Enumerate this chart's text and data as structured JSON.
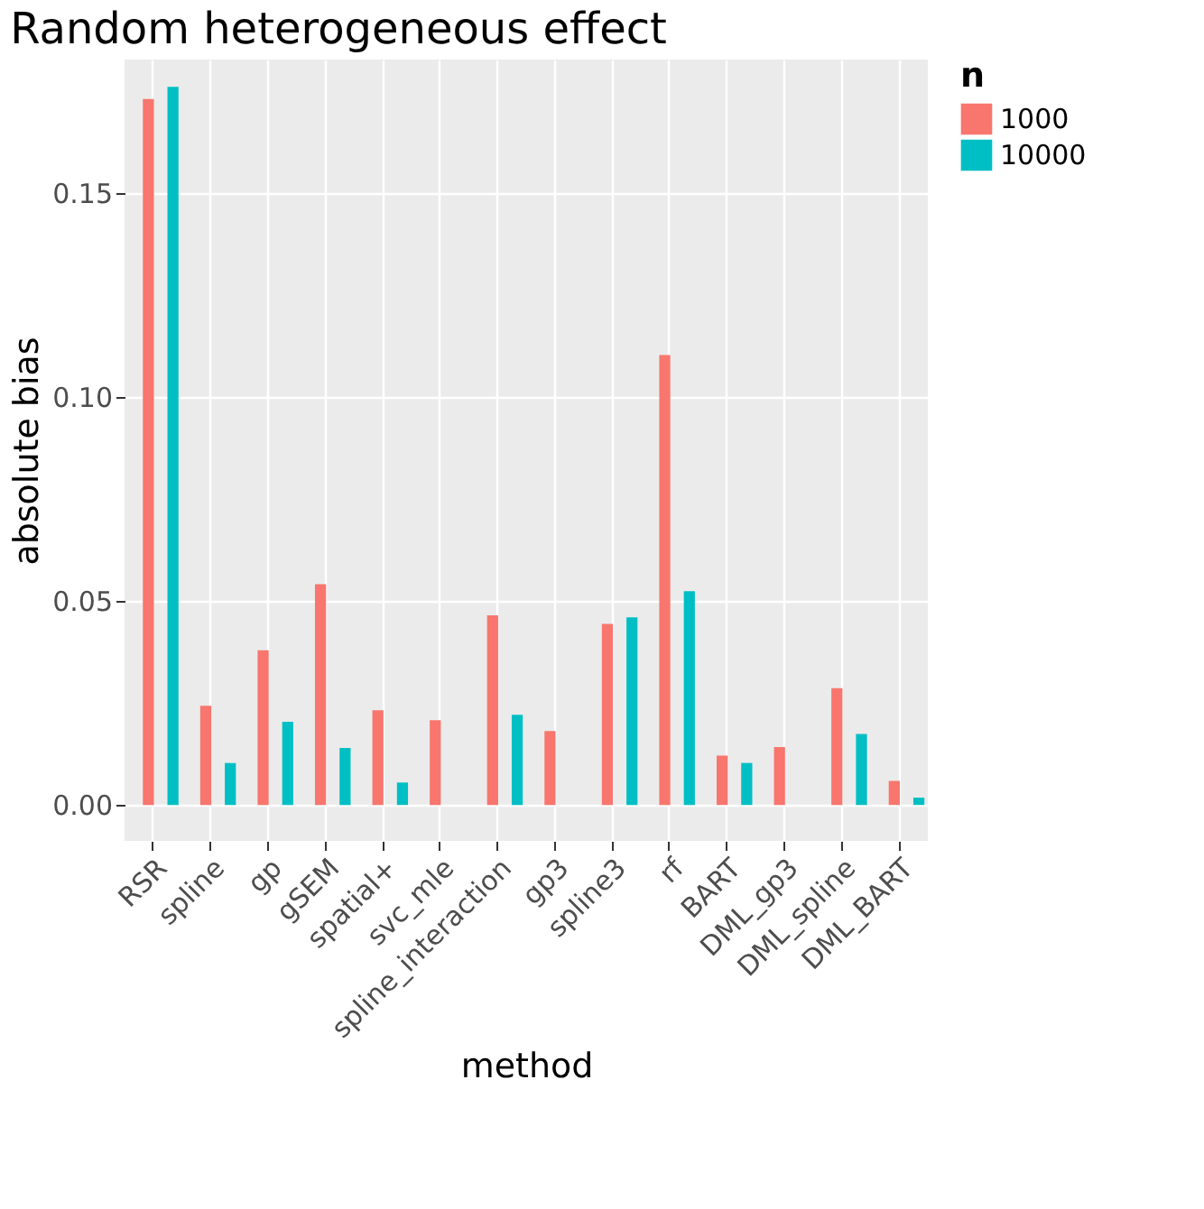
{
  "chart_data": {
    "type": "bar",
    "title": "Random heterogeneous effect",
    "xlabel": "method",
    "ylabel": "absolute bias",
    "legend_title": "n",
    "categories": [
      "RSR",
      "spline",
      "gp",
      "gSEM",
      "spatial+",
      "svc_mle",
      "spline_interaction",
      "gp3",
      "spline3",
      "rf",
      "BART",
      "DML_gp3",
      "DML_spline",
      "DML_BART"
    ],
    "series": [
      {
        "name": "1000",
        "color": "#f8766d",
        "values": [
          0.173,
          0.0243,
          0.0379,
          0.0541,
          0.0232,
          0.0208,
          0.0465,
          0.0181,
          0.0444,
          0.1103,
          0.0121,
          0.0142,
          0.0286,
          0.0059
        ]
      },
      {
        "name": "10000",
        "color": "#00bfc4",
        "values": [
          0.176,
          0.0103,
          0.0204,
          0.014,
          0.0055,
          null,
          0.0221,
          null,
          0.046,
          0.0524,
          0.0103,
          null,
          0.0174,
          0.0018
        ]
      }
    ],
    "ylim": [
      -0.0088,
      0.1827
    ],
    "yticks": [
      {
        "value": 0,
        "label": "0.00"
      },
      {
        "value": 0.05,
        "label": "0.05"
      },
      {
        "value": 0.1,
        "label": "0.10"
      },
      {
        "value": 0.15,
        "label": "0.15"
      }
    ],
    "grid": true,
    "legend": "right"
  }
}
